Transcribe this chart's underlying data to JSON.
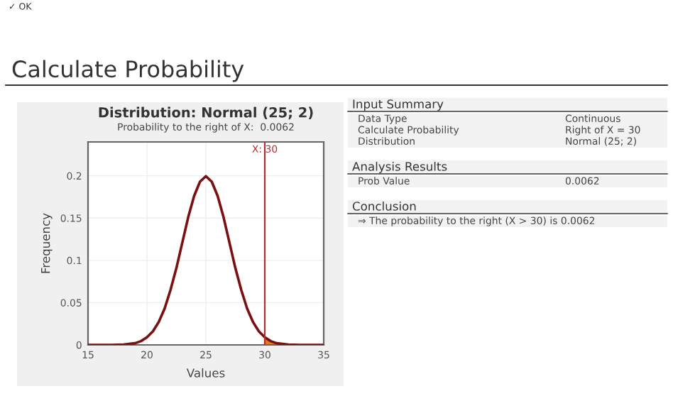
{
  "chart_data": [
    {
      "type": "line",
      "title": "Distribution: Normal (25; 2)",
      "subtitle": "Probability to the right of X:  0.0062",
      "xlabel": "Values",
      "ylabel": "Frequency",
      "xlim": [
        15,
        35
      ],
      "xticks": [
        15,
        20,
        25,
        30,
        35
      ],
      "ylim": [
        0,
        0.24
      ],
      "yticks": [
        0,
        0.05,
        0.1,
        0.15,
        0.2
      ],
      "grid": true,
      "series": [
        {
          "type": "line",
          "color": "#7a1010",
          "x": [
            15,
            17,
            18,
            19,
            19.5,
            20,
            20.5,
            21,
            21.5,
            22,
            22.5,
            23,
            23.5,
            24,
            24.5,
            25,
            25.5,
            26,
            26.5,
            27,
            27.5,
            28,
            28.5,
            29,
            29.5,
            30,
            30.5,
            31,
            32,
            33,
            35
          ],
          "values": [
            0,
            0,
            0.0004,
            0.002,
            0.0045,
            0.009,
            0.016,
            0.027,
            0.043,
            0.065,
            0.091,
            0.121,
            0.151,
            0.176,
            0.193,
            0.1995,
            0.193,
            0.176,
            0.151,
            0.121,
            0.091,
            0.065,
            0.043,
            0.027,
            0.016,
            0.009,
            0.0045,
            0.002,
            0.0004,
            0,
            0
          ]
        },
        {
          "type": "area",
          "color": "#e07a1f",
          "x": [
            30,
            30.5,
            31,
            31.5,
            32,
            32.5,
            33
          ],
          "values": [
            0.009,
            0.0045,
            0.002,
            0.001,
            0.0004,
            0.0001,
            0
          ]
        }
      ],
      "ref_lines": [
        {
          "axis": "x",
          "value": 30,
          "label": "X: 30",
          "color": "#b03030"
        }
      ]
    },
    {
      "type": "other",
      "title": "Calculate Probability",
      "annotations": [
        "✓ OK",
        "Input Summary",
        "Data Type",
        "Continuous",
        "Calculate Probability",
        "Right of X = 30",
        "Distribution",
        "Normal (25; 2)",
        "Analysis Results",
        "Prob Value",
        "0.0062",
        "Conclusion",
        "⇒ The probability to the right (X > 30) is 0.0062"
      ]
    }
  ]
}
